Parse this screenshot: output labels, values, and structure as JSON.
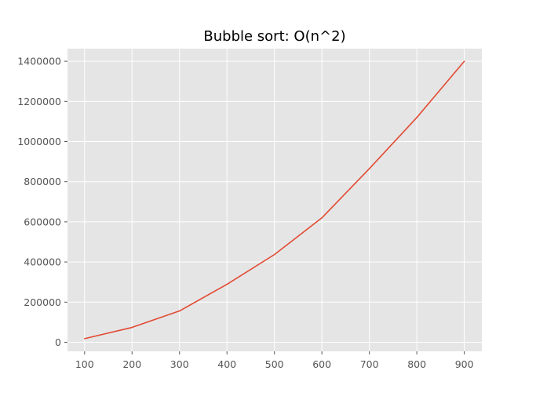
{
  "chart_data": {
    "type": "line",
    "title": "Bubble sort: O(n^2)",
    "xlabel": "",
    "ylabel": "",
    "x": [
      100,
      200,
      300,
      400,
      500,
      600,
      700,
      800,
      900
    ],
    "series": [
      {
        "values": [
          18000,
          74000,
          156000,
          289000,
          437000,
          620000,
          865000,
          1120000,
          1400000
        ]
      }
    ],
    "xlim": [
      64,
      937
    ],
    "ylim": [
      -45000,
      1463000
    ],
    "xticks": [
      100,
      200,
      300,
      400,
      500,
      600,
      700,
      800,
      900
    ],
    "yticks": [
      0,
      200000,
      400000,
      600000,
      800000,
      1000000,
      1200000,
      1400000
    ],
    "grid": true,
    "legend": "none",
    "colors": {
      "line": "#E24A33",
      "plot_background": "#E5E5E5",
      "grid": "#FFFFFF",
      "tick_text": "#555555",
      "title": "#000000"
    }
  }
}
